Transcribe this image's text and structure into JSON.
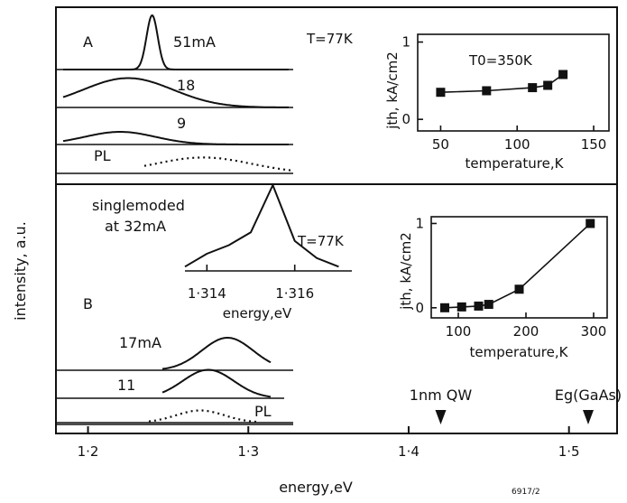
{
  "chart_data": {
    "type": "line",
    "xlabel": "energy,eV",
    "ylabel": "intensity, a.u.",
    "x_ticks": [
      "1·2",
      "1·3",
      "1·4",
      "1·5"
    ],
    "xlim": [
      1.18,
      1.53
    ],
    "markers": [
      {
        "label": "1nm QW",
        "x": 1.42
      },
      {
        "label": "Eg(GaAs)",
        "x": 1.512
      }
    ],
    "tag": "6917/2",
    "panel_a": {
      "label": "A",
      "temperature": "T=77K",
      "spectra": [
        {
          "label": "51mA",
          "peak_eV": 1.24,
          "width_eV": 0.0035,
          "amplitude": 1.0
        },
        {
          "label": "18",
          "peak_eV": 1.225,
          "width_eV": 0.028,
          "amplitude": 0.65
        },
        {
          "label": "9",
          "peak_eV": 1.22,
          "width_eV": 0.022,
          "amplitude": 0.35
        },
        {
          "label": "PL",
          "peak_eV": 1.272,
          "width_eV": 0.03,
          "amplitude": 0.55
        }
      ],
      "inset": {
        "ylabel": "jth, kA/cm2",
        "xlabel": "temperature,K",
        "annotation": "T0=350K",
        "x_ticks": [
          "50",
          "100",
          "150"
        ],
        "y_ticks": [
          "0",
          "1"
        ],
        "xlim": [
          35,
          160
        ],
        "ylim": [
          -0.15,
          1.1
        ],
        "x": [
          50,
          80,
          110,
          120,
          130
        ],
        "y": [
          0.35,
          0.37,
          0.41,
          0.44,
          0.58
        ]
      }
    },
    "panel_b": {
      "label": "B",
      "temperature": "T=77K",
      "spectra": [
        {
          "label": "17mA",
          "peak_eV": 1.287,
          "width_eV": 0.016,
          "amplitude": 0.8
        },
        {
          "label": "11",
          "peak_eV": 1.275,
          "width_eV": 0.016,
          "amplitude": 0.75
        },
        {
          "label": "PL",
          "peak_eV": 1.27,
          "width_eV": 0.015,
          "amplitude": 0.45
        }
      ],
      "singlemode": {
        "label_line1": "singlemoded",
        "label_line2": "at 32mA",
        "xlabel": "energy,eV",
        "x_ticks": [
          "1·314",
          "1·316"
        ],
        "xlim": [
          1.3135,
          1.3173
        ],
        "x": [
          1.3135,
          1.314,
          1.3145,
          1.315,
          1.3155,
          1.316,
          1.3165,
          1.317
        ],
        "y": [
          0.05,
          0.2,
          0.3,
          0.45,
          1.0,
          0.35,
          0.15,
          0.05
        ]
      },
      "inset": {
        "ylabel": "jth, kA/cm2",
        "xlabel": "temperature,K",
        "x_ticks": [
          "100",
          "200",
          "300"
        ],
        "y_ticks": [
          "0",
          "1"
        ],
        "xlim": [
          60,
          320
        ],
        "ylim": [
          -0.12,
          1.08
        ],
        "x": [
          80,
          105,
          130,
          145,
          190,
          295
        ],
        "y": [
          0.0,
          0.01,
          0.02,
          0.04,
          0.22,
          1.0
        ]
      }
    }
  }
}
